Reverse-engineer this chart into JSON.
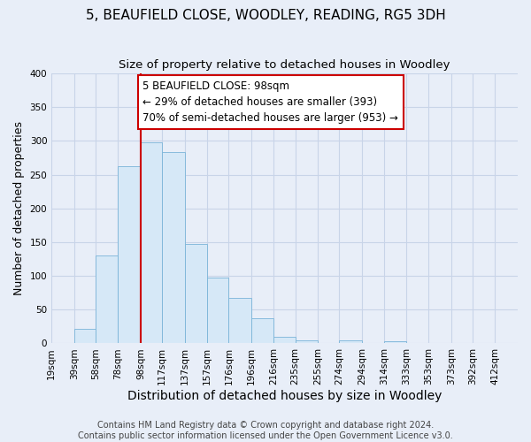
{
  "title": "5, BEAUFIELD CLOSE, WOODLEY, READING, RG5 3DH",
  "subtitle": "Size of property relative to detached houses in Woodley",
  "xlabel": "Distribution of detached houses by size in Woodley",
  "ylabel": "Number of detached properties",
  "footer_line1": "Contains HM Land Registry data © Crown copyright and database right 2024.",
  "footer_line2": "Contains public sector information licensed under the Open Government Licence v3.0.",
  "bin_labels": [
    "19sqm",
    "39sqm",
    "58sqm",
    "78sqm",
    "98sqm",
    "117sqm",
    "137sqm",
    "157sqm",
    "176sqm",
    "196sqm",
    "216sqm",
    "235sqm",
    "255sqm",
    "274sqm",
    "294sqm",
    "314sqm",
    "333sqm",
    "353sqm",
    "373sqm",
    "392sqm",
    "412sqm"
  ],
  "bin_edges": [
    19,
    39,
    58,
    78,
    98,
    117,
    137,
    157,
    176,
    196,
    216,
    235,
    255,
    274,
    294,
    314,
    333,
    353,
    373,
    392,
    412
  ],
  "bar_heights": [
    0,
    21,
    130,
    263,
    298,
    284,
    147,
    98,
    68,
    37,
    10,
    5,
    0,
    4,
    0,
    3,
    0,
    0,
    0,
    0,
    0
  ],
  "bar_fill_color": "#d6e8f7",
  "bar_edge_color": "#7ab4d8",
  "property_size": 98,
  "property_line_color": "#cc0000",
  "annotation_line1": "5 BEAUFIELD CLOSE: 98sqm",
  "annotation_line2": "← 29% of detached houses are smaller (393)",
  "annotation_line3": "70% of semi-detached houses are larger (953) →",
  "annotation_box_color": "#ffffff",
  "annotation_box_edge_color": "#cc0000",
  "ylim": [
    0,
    400
  ],
  "yticks": [
    0,
    50,
    100,
    150,
    200,
    250,
    300,
    350,
    400
  ],
  "grid_color": "#c8d4e8",
  "background_color": "#e8eef8",
  "plot_bg_color": "#e8eef8",
  "title_fontsize": 11,
  "subtitle_fontsize": 9.5,
  "xlabel_fontsize": 10,
  "ylabel_fontsize": 9,
  "tick_fontsize": 7.5,
  "annotation_fontsize": 8.5,
  "footer_fontsize": 7
}
